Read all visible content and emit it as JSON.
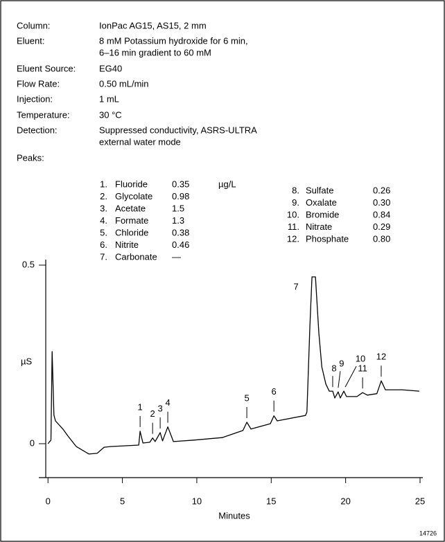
{
  "conditions": [
    {
      "label": "Column:",
      "value": [
        "IonPac AG15, AS15, 2 mm"
      ]
    },
    {
      "label": "Eluent:",
      "value": [
        "8 mM Potassium hydroxide for 6 min,",
        "6–16 min gradient to 60 mM"
      ]
    },
    {
      "label": "Eluent Source:",
      "value": [
        "EG40"
      ]
    },
    {
      "label": "Flow Rate:",
      "value": [
        "0.50 mL/min"
      ]
    },
    {
      "label": "Injection:",
      "value": [
        "1 mL"
      ]
    },
    {
      "label": "Temperature:",
      "value": [
        "30 °C"
      ]
    },
    {
      "label": "Detection:",
      "value": [
        "Suppressed conductivity, ASRS-ULTRA",
        "external water mode"
      ]
    }
  ],
  "peaks_label": "Peaks:",
  "peaks_unit": "µg/L",
  "peaks_left": [
    {
      "num": "1.",
      "name": "Fluoride",
      "amount": "0.35"
    },
    {
      "num": "2.",
      "name": "Glycolate",
      "amount": "0.98"
    },
    {
      "num": "3.",
      "name": "Acetate",
      "amount": "1.5"
    },
    {
      "num": "4.",
      "name": "Formate",
      "amount": "1.3"
    },
    {
      "num": "5.",
      "name": "Chloride",
      "amount": "0.38"
    },
    {
      "num": "6.",
      "name": "Nitrite",
      "amount": "0.46"
    },
    {
      "num": "7.",
      "name": "Carbonate",
      "amount": "—"
    }
  ],
  "peaks_right": [
    {
      "num": "8.",
      "name": "Sulfate",
      "amount": "0.26"
    },
    {
      "num": "9.",
      "name": "Oxalate",
      "amount": "0.30"
    },
    {
      "num": "10.",
      "name": "Bromide",
      "amount": "0.84"
    },
    {
      "num": "11.",
      "name": "Nitrate",
      "amount": "0.29"
    },
    {
      "num": "12.",
      "name": "Phosphate",
      "amount": "0.80"
    }
  ],
  "figure_id": "14726",
  "chart_data": {
    "type": "line",
    "x_label": "Minutes",
    "y_label": "µS",
    "xlim": [
      -0.15,
      25
    ],
    "ylim": [
      -0.095,
      0.5
    ],
    "xticks": [
      0,
      5,
      10,
      15,
      20,
      25
    ],
    "yticks": [
      0,
      0.5
    ],
    "x": [
      0,
      0.2,
      0.28,
      0.4,
      0.5,
      1.0,
      1.35,
      1.9,
      2.75,
      3.3,
      3.77,
      4.2,
      6.1,
      6.19,
      6.38,
      6.84,
      7.03,
      7.2,
      7.54,
      7.7,
      8.05,
      8.43,
      9.8,
      11.7,
      13.1,
      13.36,
      13.64,
      14.94,
      15.18,
      15.4,
      17.3,
      17.4,
      17.6,
      17.74,
      17.97,
      18.2,
      18.4,
      18.67,
      18.9,
      19.13,
      19.27,
      19.5,
      19.64,
      19.88,
      20.06,
      20.76,
      21.14,
      21.46,
      22.1,
      22.39,
      22.67,
      23.8,
      24.95
    ],
    "series": [
      {
        "color": "#000000",
        "values": [
          0,
          0.01,
          0.258,
          0.08,
          0.064,
          0.041,
          0.021,
          -0.008,
          -0.029,
          -0.027,
          -0.01,
          -0.008,
          -0.004,
          0.035,
          0.002,
          0.004,
          0.016,
          0.006,
          0.031,
          0.008,
          0.047,
          0.006,
          0.01,
          0.017,
          0.037,
          0.06,
          0.041,
          0.056,
          0.078,
          0.064,
          0.079,
          0.089,
          0.33,
          0.467,
          0.467,
          0.31,
          0.215,
          0.167,
          0.147,
          0.147,
          0.128,
          0.145,
          0.128,
          0.147,
          0.132,
          0.132,
          0.143,
          0.136,
          0.14,
          0.176,
          0.151,
          0.151,
          0.147
        ]
      }
    ],
    "peak_labels": [
      {
        "label": "1",
        "x": 6.19,
        "y": 0.035
      },
      {
        "label": "2",
        "x": 7.03,
        "y": 0.016
      },
      {
        "label": "3",
        "x": 7.54,
        "y": 0.031
      },
      {
        "label": "4",
        "x": 8.05,
        "y": 0.047
      },
      {
        "label": "5",
        "x": 13.36,
        "y": 0.06
      },
      {
        "label": "6",
        "x": 15.18,
        "y": 0.078
      },
      {
        "label": "7",
        "x": 17.74,
        "y": 0.467
      },
      {
        "label": "8",
        "x": 19.13,
        "y": 0.147
      },
      {
        "label": "9",
        "x": 19.5,
        "y": 0.145
      },
      {
        "label": "10",
        "x": 19.88,
        "y": 0.147
      },
      {
        "label": "11",
        "x": 21.14,
        "y": 0.143
      },
      {
        "label": "12",
        "x": 22.39,
        "y": 0.176
      }
    ]
  }
}
